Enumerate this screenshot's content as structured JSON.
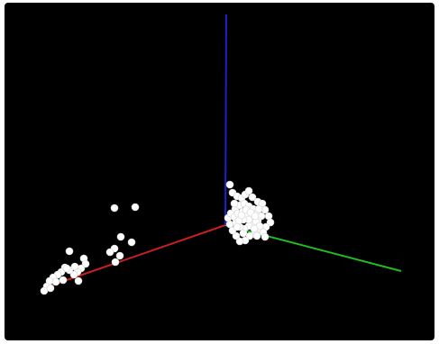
{
  "chart_data": {
    "type": "scatter",
    "projection": "3d",
    "background": "#000000",
    "grid": false,
    "legend": "none",
    "axes": [
      {
        "name": "x",
        "color": "#cc1f1f"
      },
      {
        "name": "y",
        "color": "#22bb22"
      },
      {
        "name": "z",
        "color": "#1f1fcc"
      }
    ],
    "point_color": "#ffffff",
    "clusters": [
      {
        "id": "cluster-near-origin",
        "points": [
          [
            255,
            205
          ],
          [
            258,
            214
          ],
          [
            263,
            218
          ],
          [
            268,
            220
          ],
          [
            272,
            216
          ],
          [
            276,
            212
          ],
          [
            280,
            219
          ],
          [
            286,
            224
          ],
          [
            291,
            226
          ],
          [
            294,
            233
          ],
          [
            298,
            240
          ],
          [
            300,
            247
          ],
          [
            295,
            252
          ],
          [
            289,
            255
          ],
          [
            283,
            259
          ],
          [
            277,
            262
          ],
          [
            272,
            267
          ],
          [
            266,
            268
          ],
          [
            262,
            262
          ],
          [
            258,
            256
          ],
          [
            255,
            249
          ],
          [
            253,
            242
          ],
          [
            256,
            237
          ],
          [
            261,
            232
          ],
          [
            266,
            228
          ],
          [
            271,
            226
          ],
          [
            276,
            229
          ],
          [
            281,
            232
          ],
          [
            286,
            236
          ],
          [
            290,
            240
          ],
          [
            286,
            245
          ],
          [
            281,
            249
          ],
          [
            276,
            251
          ],
          [
            271,
            254
          ],
          [
            266,
            252
          ],
          [
            262,
            247
          ],
          [
            260,
            241
          ],
          [
            264,
            237
          ],
          [
            269,
            235
          ],
          [
            274,
            238
          ],
          [
            279,
            242
          ],
          [
            284,
            246
          ],
          [
            288,
            251
          ],
          [
            282,
            254
          ],
          [
            276,
            244
          ],
          [
            270,
            244
          ],
          [
            265,
            245
          ],
          [
            268,
            239
          ],
          [
            273,
            233
          ],
          [
            278,
            236
          ],
          [
            283,
            240
          ],
          [
            287,
            232
          ],
          [
            292,
            258
          ],
          [
            270,
            259
          ],
          [
            260,
            226
          ],
          [
            263,
            252
          ],
          [
            294,
            263
          ],
          [
            285,
            262
          ]
        ]
      },
      {
        "id": "cluster-along-x",
        "points": [
          [
            127,
            231
          ],
          [
            150,
            230
          ],
          [
            134,
            263
          ],
          [
            146,
            269
          ],
          [
            127,
            276
          ],
          [
            133,
            284
          ],
          [
            128,
            291
          ],
          [
            122,
            280
          ],
          [
            93,
            287
          ],
          [
            95,
            293
          ],
          [
            90,
            298
          ],
          [
            86,
            302
          ],
          [
            82,
            305
          ],
          [
            77,
            300
          ],
          [
            72,
            297
          ],
          [
            68,
            302
          ],
          [
            64,
            305
          ],
          [
            59,
            308
          ],
          [
            55,
            312
          ],
          [
            52,
            318
          ],
          [
            49,
            323
          ],
          [
            56,
            320
          ],
          [
            62,
            313
          ],
          [
            70,
            311
          ],
          [
            77,
            279
          ],
          [
            87,
            312
          ],
          [
            83,
            296
          ],
          [
            74,
            298
          ]
        ]
      }
    ]
  }
}
